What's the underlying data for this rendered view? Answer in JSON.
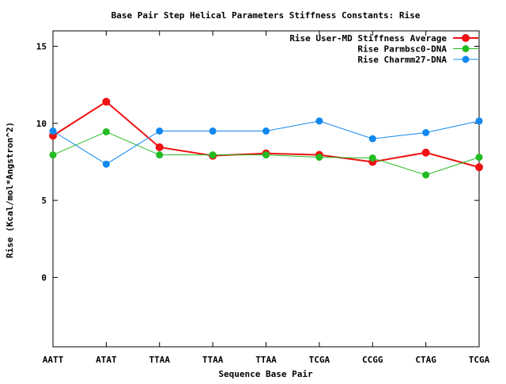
{
  "chart_data": {
    "type": "line",
    "title": "Base Pair Step Helical Parameters Stiffness Constants: Rise",
    "xlabel": "Sequence Base Pair",
    "ylabel": "Rise (Kcal/mol*Angstron^2)",
    "categories": [
      "AATT",
      "ATAT",
      "TTAA",
      "TTAA",
      "TTAA",
      "TCGA",
      "CCGG",
      "CTAG",
      "TCGA"
    ],
    "ylim": [
      -4.5,
      16
    ],
    "yticks": [
      0,
      5,
      10,
      15
    ],
    "grid": false,
    "legend_position": "top-right",
    "series": [
      {
        "name": "Rise User-MD Stiffness Average",
        "color": "#ee1111",
        "values": [
          9.2,
          11.4,
          8.45,
          7.9,
          8.05,
          7.95,
          7.5,
          8.1,
          7.15
        ]
      },
      {
        "name": "Rise Parmbsc0-DNA",
        "color": "#22bb22",
        "values": [
          7.95,
          9.45,
          7.95,
          7.95,
          7.95,
          7.8,
          7.75,
          6.65,
          7.8
        ]
      },
      {
        "name": "Rise Charmm27-DNA",
        "color": "#1188ee",
        "values": [
          9.5,
          7.35,
          9.5,
          9.5,
          9.5,
          10.15,
          9.0,
          9.4,
          10.15
        ]
      }
    ]
  }
}
